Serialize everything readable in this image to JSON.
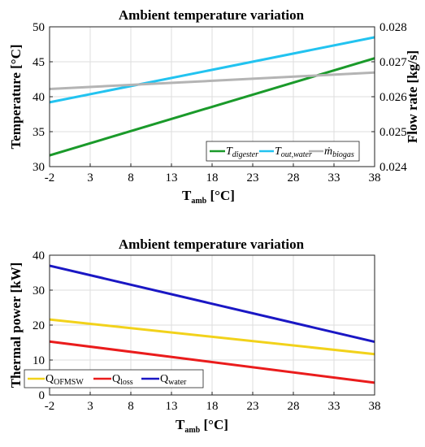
{
  "chart_data": [
    {
      "type": "line",
      "title": "Ambient temperature variation",
      "xlabel": "T",
      "xlabel_sub": "amb",
      "xlabel_unit": " [°C]",
      "ylabel": "Temperature [°C]",
      "y2label": "Flow rate [kg/s]",
      "xlim": [
        -2,
        38
      ],
      "ylim": [
        30,
        50
      ],
      "y2lim": [
        0.024,
        0.028
      ],
      "xticks": [
        -2,
        3,
        8,
        13,
        18,
        23,
        28,
        33,
        38
      ],
      "yticks": [
        30,
        35,
        40,
        45,
        50
      ],
      "y2ticks": [
        "0.024",
        "0.025",
        "0.026",
        "0.027",
        "0.028"
      ],
      "grid": true,
      "legend_position": "bottom-right",
      "series": [
        {
          "name": "T",
          "name_sub": "digester",
          "axis": "left",
          "color": "#1a9a2a",
          "x": [
            -2,
            38
          ],
          "y": [
            31.6,
            45.5
          ]
        },
        {
          "name": "T",
          "name_sub": "out,water",
          "axis": "left",
          "color": "#22c3f0",
          "x": [
            -2,
            38
          ],
          "y": [
            39.2,
            48.5
          ]
        },
        {
          "name": "ṁ",
          "name_sub": "biogas",
          "axis": "right",
          "color": "#b4b4b4",
          "x": [
            -2,
            38
          ],
          "y": [
            0.02622,
            0.02669
          ]
        }
      ]
    },
    {
      "type": "line",
      "title": "Ambient temperature variation",
      "xlabel": "T",
      "xlabel_sub": "amb",
      "xlabel_unit": " [°C]",
      "ylabel": "Thermal power [kW]",
      "xlim": [
        -2,
        38
      ],
      "ylim": [
        0,
        40
      ],
      "xticks": [
        -2,
        3,
        8,
        13,
        18,
        23,
        28,
        33,
        38
      ],
      "yticks": [
        0,
        10,
        20,
        30,
        40
      ],
      "grid": true,
      "legend_position": "bottom-left",
      "series": [
        {
          "name": "Q",
          "name_sub": "OFMSW",
          "color": "#f2d21b",
          "x": [
            -2,
            38
          ],
          "y": [
            21.6,
            11.7
          ]
        },
        {
          "name": "Q",
          "name_sub": "loss",
          "color": "#ea1c1c",
          "x": [
            -2,
            38
          ],
          "y": [
            15.3,
            3.5
          ]
        },
        {
          "name": "Q",
          "name_sub": "water",
          "color": "#1a17c4",
          "x": [
            -2,
            38
          ],
          "y": [
            37.0,
            15.2
          ]
        }
      ]
    }
  ]
}
